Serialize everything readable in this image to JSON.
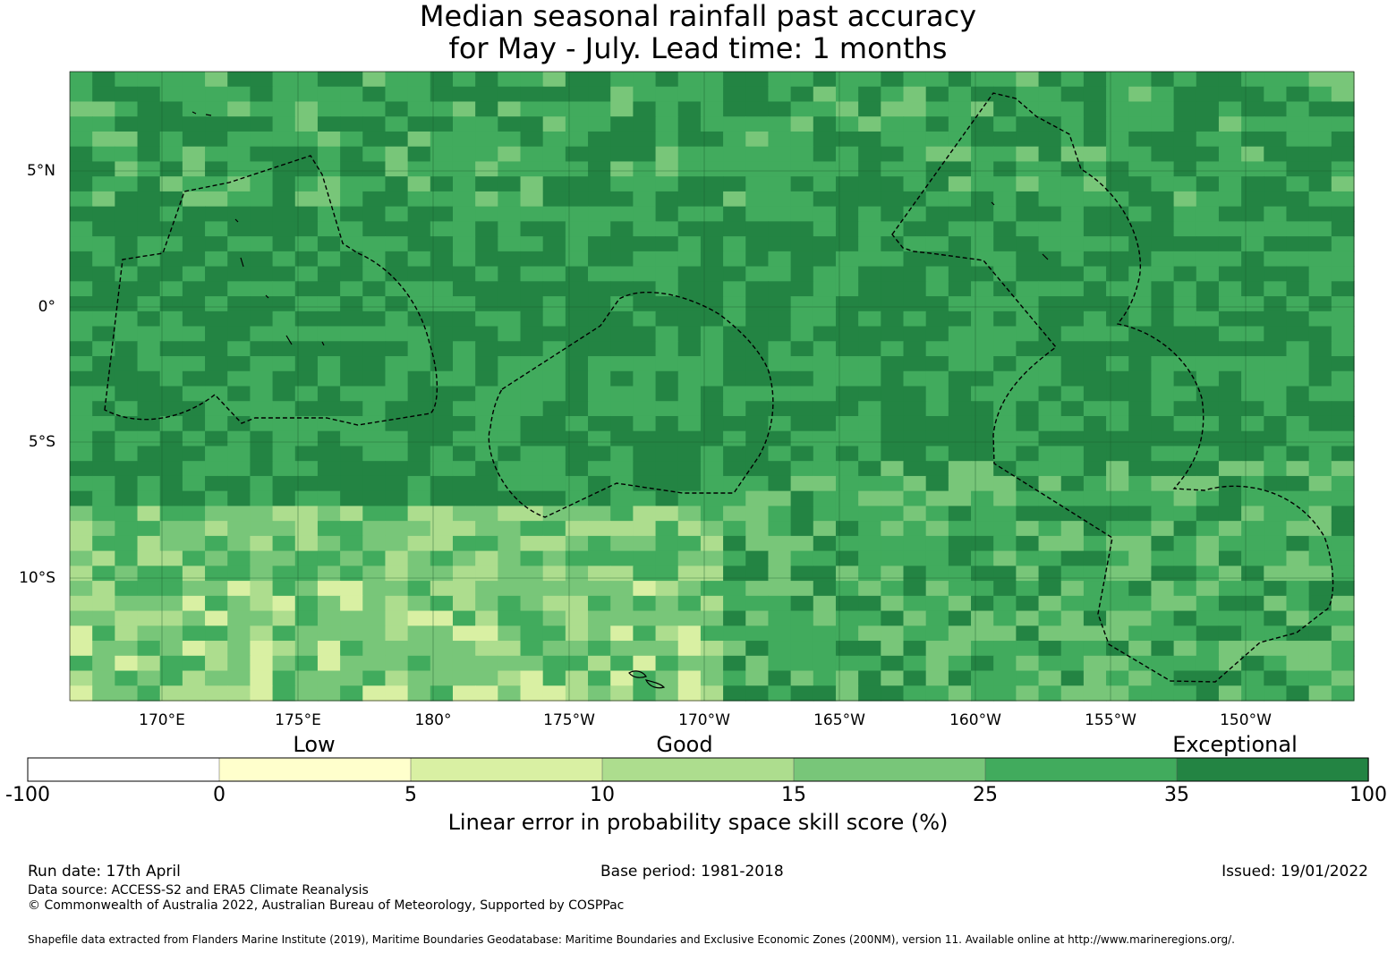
{
  "title": {
    "line1": "Median seasonal rainfall past accuracy",
    "line2": "for May - July. Lead time: 1 months"
  },
  "map": {
    "lat_labels": [
      "5°N",
      "0°",
      "5°S",
      "10°S"
    ],
    "lon_labels": [
      "170°E",
      "175°E",
      "180°",
      "175°W",
      "170°W",
      "165°W",
      "160°W",
      "155°W",
      "150°W"
    ]
  },
  "colorbar": {
    "category_labels": [
      "Low",
      "Good",
      "Exceptional"
    ],
    "tick_labels": [
      "-100",
      "0",
      "5",
      "10",
      "15",
      "25",
      "35",
      "100"
    ],
    "colors": [
      "#ffffff",
      "#ffffcc",
      "#d9f0a3",
      "#addd8e",
      "#78c679",
      "#41ab5d",
      "#238443"
    ],
    "axis_title": "Linear error in probability space skill score (%)"
  },
  "footer": {
    "run_date": "Run date: 17th April",
    "base_period": "Base period: 1981-2018",
    "issued": "Issued: 19/01/2022",
    "data_source": "Data source: ACCESS-S2 and ERA5 Climate Reanalysis",
    "copyright": "© Commonwealth of Australia 2022, Australian Bureau of Meteorology, Supported by COSPPac",
    "shapefile": "Shapefile data extracted from Flanders Marine Institute (2019), Maritime Boundaries Geodatabase: Maritime Boundaries and Exclusive Economic Zones (200NM), version 11. Available online at http://www.marineregions.org/."
  }
}
